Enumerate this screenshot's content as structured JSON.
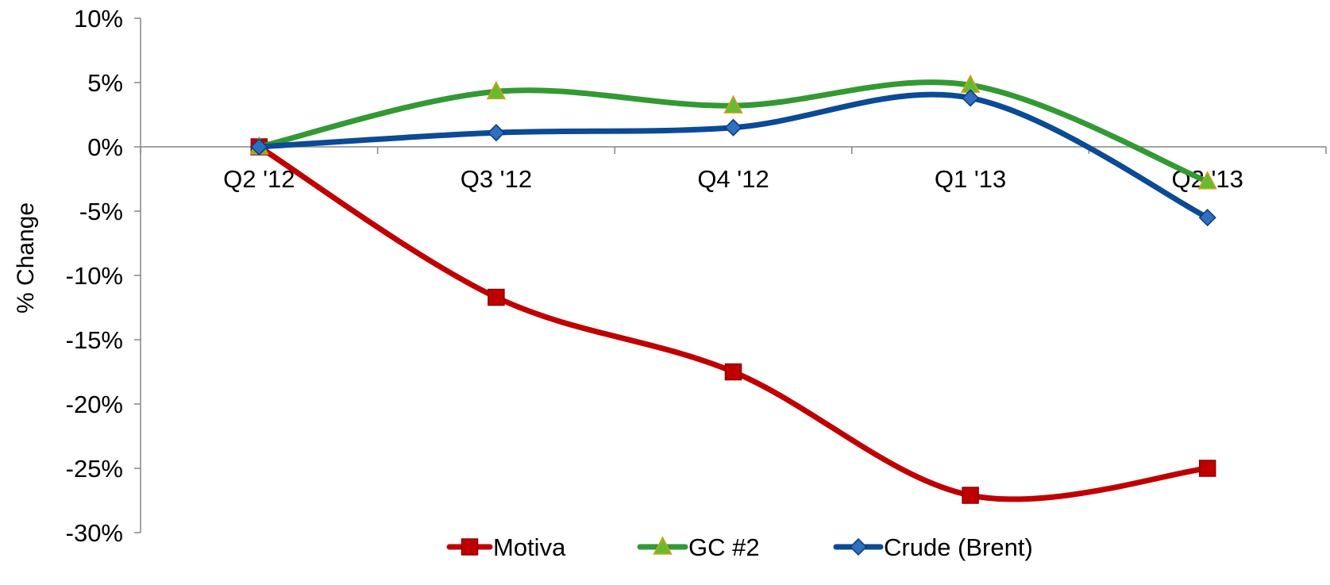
{
  "chart_data": {
    "type": "line",
    "title": "",
    "xlabel": "",
    "ylabel": "% Change",
    "ylim": [
      -30,
      10
    ],
    "yticks": [
      10,
      5,
      0,
      -5,
      -10,
      -15,
      -20,
      -25,
      -30
    ],
    "ytick_labels": [
      "10%",
      "5%",
      "0%",
      "-5%",
      "-10%",
      "-15%",
      "-20%",
      "-25%",
      "-30%"
    ],
    "categories": [
      "Q2 '12",
      "Q3 '12",
      "Q4 '12",
      "Q1 '13",
      "Q2 '13"
    ],
    "smooth": true,
    "grid": false,
    "legend_position": "bottom",
    "series": [
      {
        "name": "Motiva",
        "color": "#c00000",
        "marker": "square",
        "marker_fill": "#c00000",
        "marker_stroke": "#8c0000",
        "values": [
          0,
          -11.7,
          -17.5,
          -27.1,
          -25.0
        ]
      },
      {
        "name": "GC #2",
        "color": "#339933",
        "marker": "triangle",
        "marker_fill": "#66bb33",
        "marker_stroke": "#d4a017",
        "values": [
          0,
          4.3,
          3.2,
          4.8,
          -2.7
        ]
      },
      {
        "name": "Crude (Brent)",
        "color": "#0b4a96",
        "marker": "diamond",
        "marker_fill": "#2f6fc0",
        "marker_stroke": "#0b3a78",
        "values": [
          0,
          1.1,
          1.5,
          3.8,
          -5.5
        ]
      }
    ]
  }
}
